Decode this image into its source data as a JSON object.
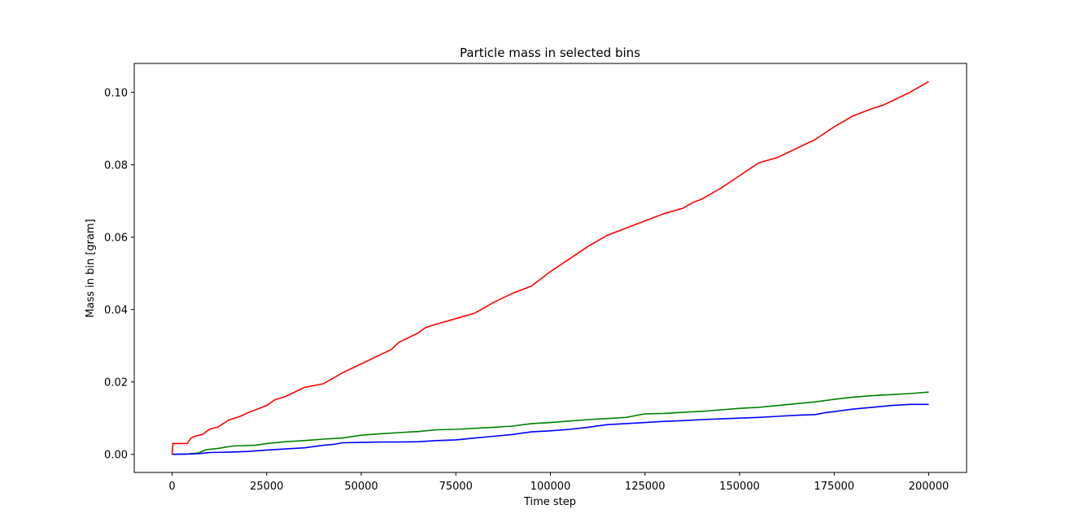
{
  "chart_data": {
    "type": "line",
    "title": "Particle mass in selected bins",
    "xlabel": "Time step",
    "ylabel": "Mass in bin [gram]",
    "xlim": [
      -10000,
      210000
    ],
    "ylim": [
      -0.005,
      0.108
    ],
    "x_ticks": [
      0,
      25000,
      50000,
      75000,
      100000,
      125000,
      150000,
      175000,
      200000
    ],
    "x_tick_labels": [
      "0",
      "25000",
      "50000",
      "75000",
      "100000",
      "125000",
      "150000",
      "175000",
      "200000"
    ],
    "y_ticks": [
      0.0,
      0.02,
      0.04,
      0.06,
      0.08,
      0.1
    ],
    "y_tick_labels": [
      "0.00",
      "0.02",
      "0.04",
      "0.06",
      "0.08",
      "0.10"
    ],
    "grid": false,
    "legend": "none",
    "series": [
      {
        "color": "#ff0000",
        "x": [
          0,
          200,
          4000,
          5000,
          6000,
          8000,
          10000,
          12000,
          15000,
          18000,
          20000,
          25000,
          27000,
          30000,
          35000,
          40000,
          45000,
          48000,
          50000,
          55000,
          58000,
          60000,
          65000,
          67000,
          70000,
          75000,
          80000,
          85000,
          90000,
          95000,
          100000,
          105000,
          110000,
          115000,
          120000,
          125000,
          130000,
          135000,
          137500,
          140000,
          145000,
          150000,
          155000,
          160000,
          165000,
          170000,
          175000,
          180000,
          185000,
          188000,
          190000,
          195000,
          200000
        ],
        "values": [
          0.0,
          0.003,
          0.003,
          0.0045,
          0.005,
          0.0055,
          0.007,
          0.0075,
          0.0095,
          0.0105,
          0.0115,
          0.0135,
          0.015,
          0.016,
          0.0185,
          0.0195,
          0.0225,
          0.024,
          0.025,
          0.0275,
          0.029,
          0.031,
          0.0335,
          0.035,
          0.036,
          0.0375,
          0.039,
          0.042,
          0.0445,
          0.0465,
          0.0505,
          0.054,
          0.0575,
          0.0605,
          0.0625,
          0.0645,
          0.0665,
          0.068,
          0.0695,
          0.0705,
          0.0735,
          0.077,
          0.0805,
          0.082,
          0.0845,
          0.087,
          0.0905,
          0.0935,
          0.0955,
          0.0965,
          0.0975,
          0.1,
          0.103
        ]
      },
      {
        "color": "#008000",
        "x": [
          0,
          4000,
          7000,
          9000,
          12000,
          16000,
          22000,
          25000,
          30000,
          35000,
          40000,
          45000,
          50000,
          55000,
          60000,
          65000,
          70000,
          75000,
          80000,
          85000,
          90000,
          95000,
          100000,
          105000,
          110000,
          115000,
          120000,
          125000,
          130000,
          135000,
          140000,
          145000,
          150000,
          155000,
          160000,
          165000,
          170000,
          175000,
          180000,
          185000,
          190000,
          195000,
          200000
        ],
        "values": [
          0.0,
          0.0001,
          0.0004,
          0.0013,
          0.0016,
          0.0023,
          0.0025,
          0.003,
          0.0035,
          0.0038,
          0.0042,
          0.0045,
          0.0053,
          0.0057,
          0.006,
          0.0063,
          0.0068,
          0.0069,
          0.0072,
          0.0075,
          0.0078,
          0.0085,
          0.0088,
          0.0092,
          0.0096,
          0.0099,
          0.0102,
          0.0112,
          0.0113,
          0.0116,
          0.0119,
          0.0123,
          0.0127,
          0.013,
          0.0135,
          0.014,
          0.0145,
          0.0152,
          0.0158,
          0.0162,
          0.0165,
          0.0168,
          0.0172
        ]
      },
      {
        "color": "#0000ff",
        "x": [
          0,
          5000,
          8000,
          10000,
          15000,
          20000,
          25000,
          30000,
          35000,
          40000,
          43000,
          45000,
          50000,
          55000,
          60000,
          65000,
          70000,
          75000,
          80000,
          85000,
          90000,
          95000,
          100000,
          105000,
          110000,
          115000,
          120000,
          125000,
          130000,
          135000,
          140000,
          145000,
          150000,
          155000,
          160000,
          165000,
          170000,
          172500,
          175000,
          180000,
          185000,
          190000,
          195000,
          200000
        ],
        "values": [
          0.0,
          0.0001,
          0.0003,
          0.0005,
          0.0006,
          0.0008,
          0.0012,
          0.0015,
          0.0018,
          0.0025,
          0.0028,
          0.0032,
          0.0033,
          0.0034,
          0.0034,
          0.0035,
          0.0038,
          0.004,
          0.0045,
          0.005,
          0.0055,
          0.0062,
          0.0065,
          0.0069,
          0.0075,
          0.0082,
          0.0085,
          0.0088,
          0.0091,
          0.0093,
          0.0096,
          0.0098,
          0.01,
          0.0102,
          0.0105,
          0.0108,
          0.011,
          0.0115,
          0.0118,
          0.0125,
          0.013,
          0.0135,
          0.0138,
          0.0138
        ]
      }
    ]
  }
}
